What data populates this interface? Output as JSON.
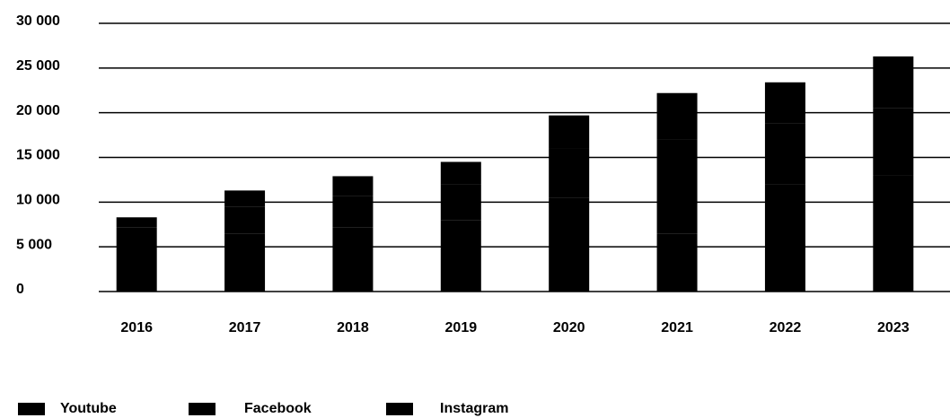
{
  "chart_data": {
    "type": "stacked_bar",
    "categories": [
      "2016",
      "2017",
      "2018",
      "2019",
      "2020",
      "2021",
      "2022",
      "2023"
    ],
    "series": [
      {
        "name": "Youtube",
        "color": "#000000",
        "values": [
          5000,
          6500,
          7200,
          8000,
          10500,
          6500,
          12000,
          13000
        ]
      },
      {
        "name": "Facebook",
        "color": "#000000",
        "values": [
          2200,
          3000,
          3500,
          4000,
          5500,
          10500,
          6800,
          7500
        ]
      },
      {
        "name": "Instagram",
        "color": "#000000",
        "values": [
          1100,
          1800,
          2200,
          2500,
          3700,
          5200,
          4600,
          5800
        ]
      }
    ],
    "ylim": [
      0,
      30000
    ],
    "yticks": [
      0,
      {
        "value": 5000,
        "label": "5 000"
      },
      {
        "value": 10000,
        "label": "10 000"
      },
      {
        "value": 15000,
        "label": "15 000"
      },
      {
        "value": 20000,
        "label": "20 000"
      },
      {
        "value": 25000,
        "label": "25 000"
      },
      {
        "value": 30000,
        "label": "30 000"
      }
    ],
    "grid": true,
    "legend": "bottom-left"
  }
}
